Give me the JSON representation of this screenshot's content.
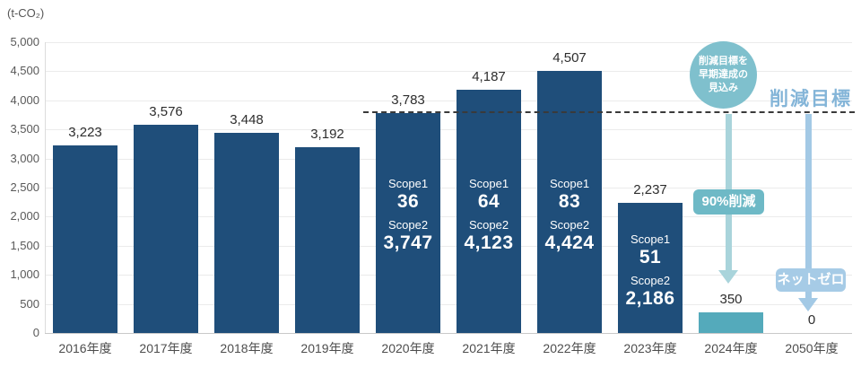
{
  "chart_data": {
    "type": "bar",
    "unit_label": "(t-CO₂)",
    "ylim": [
      0,
      5000
    ],
    "grid": true,
    "yticks": [
      {
        "value": 5000,
        "label": "5,000"
      },
      {
        "value": 4500,
        "label": "4,500"
      },
      {
        "value": 4000,
        "label": "4,000"
      },
      {
        "value": 3500,
        "label": "3,500"
      },
      {
        "value": 3000,
        "label": "3,000"
      },
      {
        "value": 2500,
        "label": "2,500"
      },
      {
        "value": 2000,
        "label": "2,000"
      },
      {
        "value": 1500,
        "label": "1,500"
      },
      {
        "value": 1000,
        "label": "1,000"
      },
      {
        "value": 500,
        "label": "500"
      },
      {
        "value": 0,
        "label": "0"
      }
    ],
    "bars": [
      {
        "category": "2016年度",
        "value": 3223,
        "label": "3,223"
      },
      {
        "category": "2017年度",
        "value": 3576,
        "label": "3,576"
      },
      {
        "category": "2018年度",
        "value": 3448,
        "label": "3,448"
      },
      {
        "category": "2019年度",
        "value": 3192,
        "label": "3,192"
      },
      {
        "category": "2020年度",
        "value": 3783,
        "label": "3,783",
        "scope1_label": "Scope1",
        "scope1_value": "36",
        "scope2_label": "Scope2",
        "scope2_value": "3,747"
      },
      {
        "category": "2021年度",
        "value": 4187,
        "label": "4,187",
        "scope1_label": "Scope1",
        "scope1_value": "64",
        "scope2_label": "Scope2",
        "scope2_value": "4,123"
      },
      {
        "category": "2022年度",
        "value": 4507,
        "label": "4,507",
        "scope1_label": "Scope1",
        "scope1_value": "83",
        "scope2_label": "Scope2",
        "scope2_value": "4,424"
      },
      {
        "category": "2023年度",
        "value": 2237,
        "label": "2,237",
        "scope1_label": "Scope1",
        "scope1_value": "51",
        "scope2_label": "Scope2",
        "scope2_value": "2,186"
      },
      {
        "category": "2024年度",
        "value": 350,
        "label": "350",
        "highlight": true
      },
      {
        "category": "2050年度",
        "value": 0,
        "label": "0"
      }
    ],
    "target_line": {
      "label": "削減目標",
      "value": 3800,
      "starts_at_category": "2020年度"
    },
    "annotations": {
      "circle_badge_lines": [
        "削減目標を",
        "早期達成の",
        "見込み"
      ],
      "reduction_badge_label": "90%削減",
      "netzero_badge_label": "ネットゼロ",
      "arrow_2024_category": "2024年度",
      "arrow_2050_category": "2050年度"
    },
    "colors": {
      "bar_default": "#1F4E7A",
      "bar_highlight": "#54AABB",
      "target_line": "#3A3A3A",
      "target_label_text": "#84B5D8",
      "circle_badge": "#7FC0CD",
      "reduction_badge": "#6EB9C6",
      "netzero_badge": "#A6CBE6",
      "arrow_2024": "#A9D4DB",
      "arrow_2050": "#A3C9E5"
    }
  }
}
